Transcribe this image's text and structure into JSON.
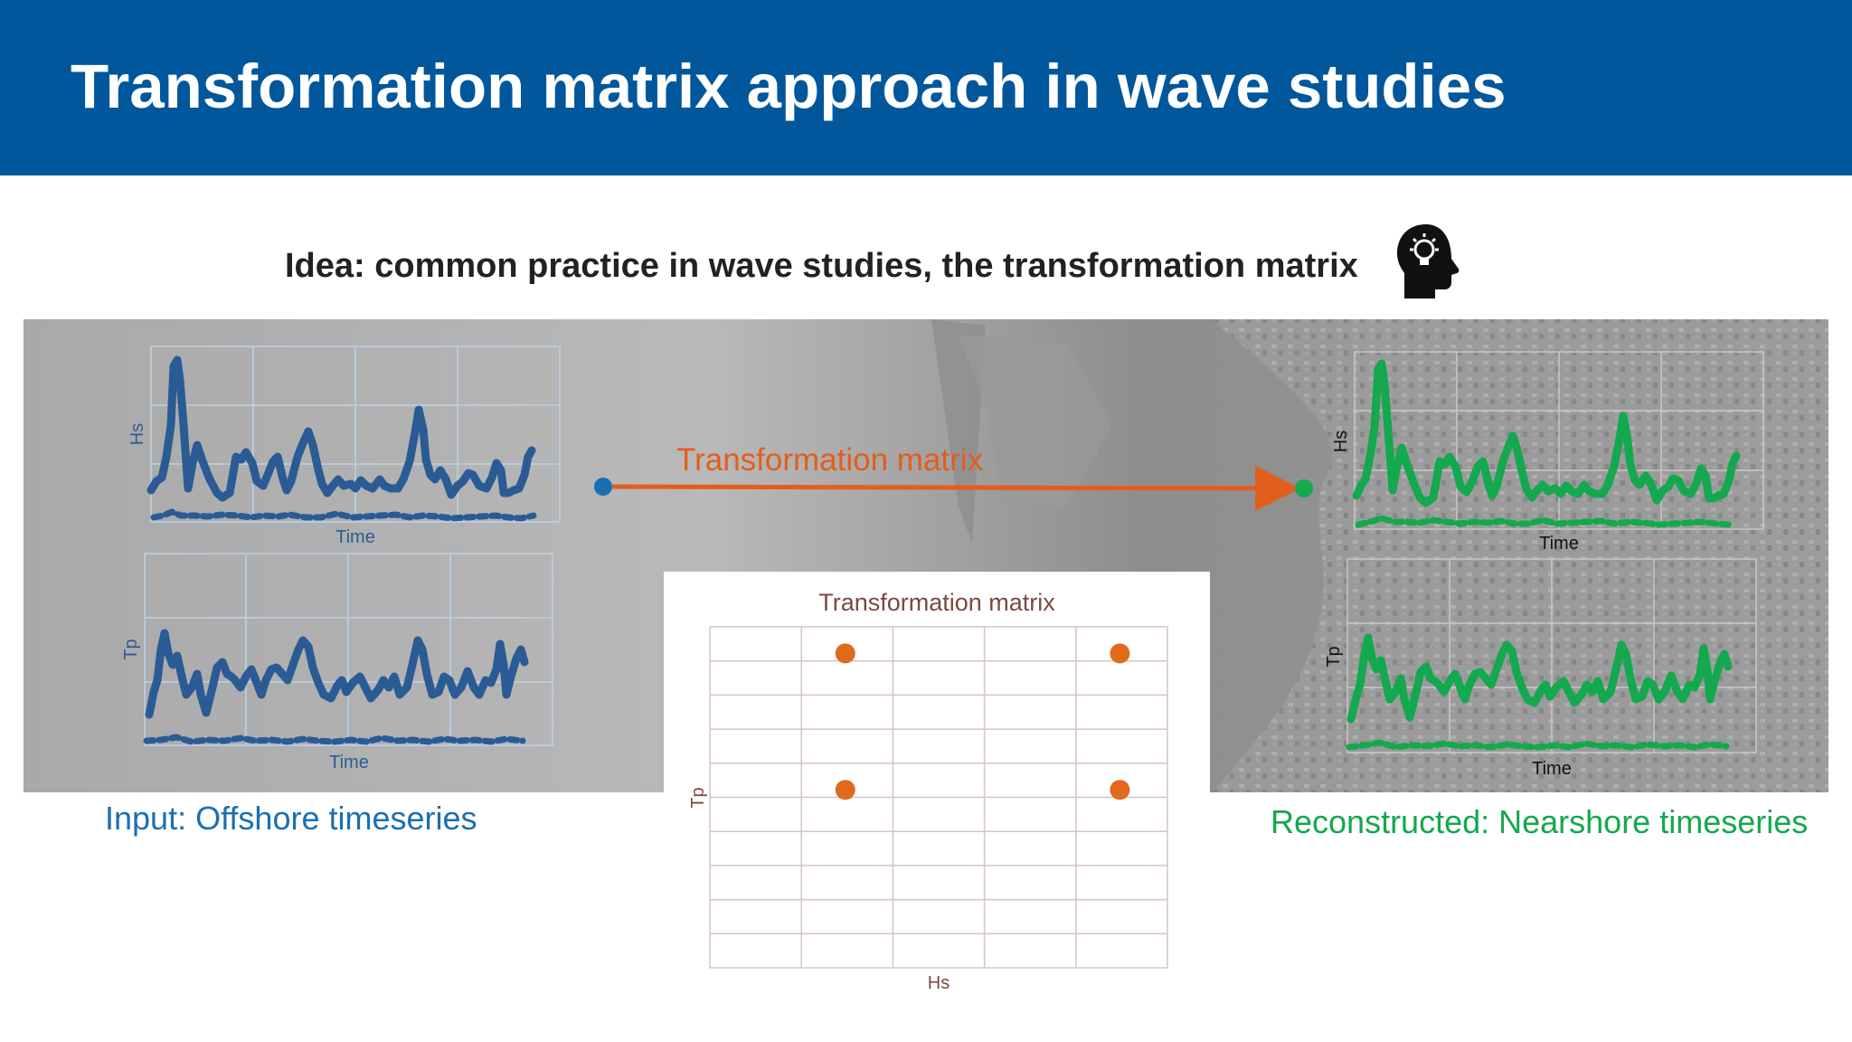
{
  "title": "Transformation matrix approach in wave studies",
  "idea": "Idea: common practice in wave studies, the transformation matrix",
  "idea_icon": "head-lightbulb-icon",
  "arrow": {
    "label": "Transformation matrix"
  },
  "input_caption": "Input: Offshore timeseries",
  "output_caption": "Reconstructed: Nearshore timeseries",
  "input_plots": {
    "hs": {
      "ylabel": "Hs",
      "xlabel": "Time"
    },
    "tp": {
      "ylabel": "Tp",
      "xlabel": "Time"
    }
  },
  "output_plots": {
    "hs": {
      "ylabel": "Hs",
      "xlabel": "Time"
    },
    "tp": {
      "ylabel": "Tp",
      "xlabel": "Time"
    }
  },
  "colors": {
    "header": "#00579b",
    "input": "#2b5b94",
    "input_caption": "#1a6fb3",
    "output": "#14a84f",
    "arrow": "#e25e1d",
    "matrix_points": "#e06a1c"
  },
  "chart_data": {
    "type": "scatter",
    "title": "Transformation matrix",
    "xlabel": "Hs",
    "ylabel": "Tp",
    "points": [
      {
        "col": 1,
        "row": 0
      },
      {
        "col": 4,
        "row": 0
      },
      {
        "col": 1,
        "row": 4
      },
      {
        "col": 4,
        "row": 4
      }
    ]
  }
}
